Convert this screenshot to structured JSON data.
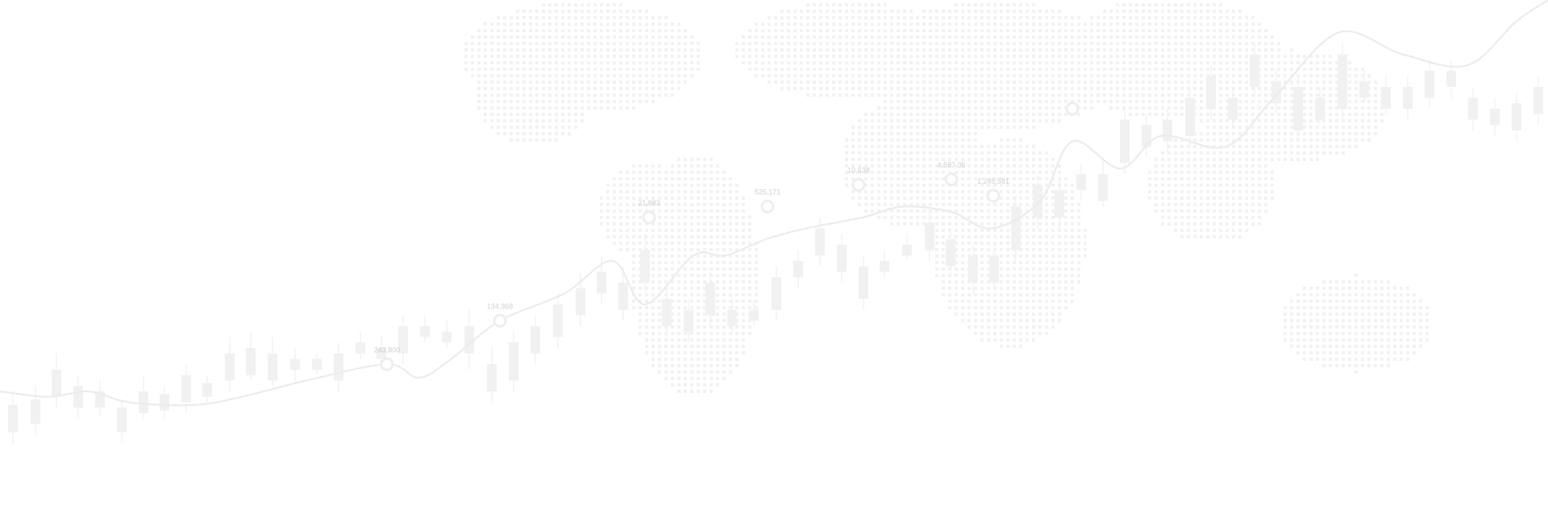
{
  "colors": {
    "background": "#ffffff",
    "map_dots": "#f2f2f2",
    "candles": "#f1f1f1",
    "line": "#ececec",
    "markers": "#eeeeee",
    "labels": "#d0d0d0"
  },
  "chart_data": {
    "type": "line",
    "title": "",
    "xlabel": "",
    "ylabel": "",
    "grid": false,
    "legend": "none",
    "overlay": "candlestick",
    "line_series": {
      "x": [
        0,
        60,
        110,
        160,
        240,
        300,
        380,
        480,
        520,
        560,
        620,
        700,
        760,
        800,
        860,
        900,
        950,
        1000,
        1070,
        1120,
        1180,
        1230,
        1290,
        1330,
        1390,
        1440,
        1520,
        1580,
        1660,
        1740,
        1820,
        1880,
        1920
      ],
      "y": [
        8,
        7,
        8,
        6,
        5.5,
        7,
        10,
        13,
        10.5,
        14,
        21,
        26,
        32,
        24,
        33,
        33,
        36,
        38,
        40,
        42,
        41,
        38,
        43,
        54,
        49,
        55,
        53,
        62,
        74,
        70,
        68,
        76,
        80
      ]
    },
    "markers": [
      {
        "x": 480,
        "y": 13,
        "label": "243,800"
      },
      {
        "x": 620,
        "y": 21,
        "label": "134,368"
      },
      {
        "x": 805,
        "y": 40,
        "label": "21,883"
      },
      {
        "x": 952,
        "y": 42,
        "label": "525,171"
      },
      {
        "x": 1065,
        "y": 46,
        "label": "10,638"
      },
      {
        "x": 1180,
        "y": 47,
        "label": "4,587.35"
      },
      {
        "x": 1232,
        "y": 44,
        "label": "1,245,581"
      },
      {
        "x": 1330,
        "y": 60,
        "label": ""
      }
    ],
    "candles": [
      {
        "x": 16,
        "open": 0.5,
        "close": 5.5,
        "high": 8,
        "low": -2
      },
      {
        "x": 44,
        "open": 2,
        "close": 6.5,
        "high": 9,
        "low": 0
      },
      {
        "x": 70,
        "open": 7,
        "close": 12,
        "high": 15,
        "low": 5
      },
      {
        "x": 97,
        "open": 5,
        "close": 9,
        "high": 11,
        "low": 3
      },
      {
        "x": 124,
        "open": 5,
        "close": 8,
        "high": 10,
        "low": 3.5
      },
      {
        "x": 151,
        "open": 0.5,
        "close": 5,
        "high": 6.5,
        "low": -1.5
      },
      {
        "x": 178,
        "open": 4,
        "close": 8,
        "high": 11,
        "low": 3
      },
      {
        "x": 204,
        "open": 4.5,
        "close": 7.5,
        "high": 9,
        "low": 3
      },
      {
        "x": 231,
        "open": 6,
        "close": 11,
        "high": 13,
        "low": 4
      },
      {
        "x": 257,
        "open": 7,
        "close": 9.5,
        "high": 11,
        "low": 6
      },
      {
        "x": 285,
        "open": 10,
        "close": 15,
        "high": 18,
        "low": 8
      },
      {
        "x": 311,
        "open": 11,
        "close": 16,
        "high": 19,
        "low": 10
      },
      {
        "x": 338,
        "open": 10,
        "close": 15,
        "high": 18,
        "low": 9
      },
      {
        "x": 366,
        "open": 12,
        "close": 14,
        "high": 16,
        "low": 10
      },
      {
        "x": 393,
        "open": 12,
        "close": 14,
        "high": 15,
        "low": 11
      },
      {
        "x": 420,
        "open": 10,
        "close": 15,
        "high": 17,
        "low": 8
      },
      {
        "x": 447,
        "open": 15,
        "close": 17,
        "high": 19,
        "low": 14
      },
      {
        "x": 473,
        "open": 14,
        "close": 16,
        "high": 18,
        "low": 12
      },
      {
        "x": 500,
        "open": 15,
        "close": 20,
        "high": 22,
        "low": 13
      },
      {
        "x": 527,
        "open": 18,
        "close": 20,
        "high": 22,
        "low": 17
      },
      {
        "x": 554,
        "open": 17,
        "close": 19,
        "high": 21,
        "low": 16
      },
      {
        "x": 582,
        "open": 15,
        "close": 20,
        "high": 23,
        "low": 12
      },
      {
        "x": 610,
        "open": 8,
        "close": 13,
        "high": 16,
        "low": 6
      },
      {
        "x": 637,
        "open": 10,
        "close": 17,
        "high": 19,
        "low": 8
      },
      {
        "x": 664,
        "open": 15,
        "close": 20,
        "high": 22,
        "low": 13
      },
      {
        "x": 692,
        "open": 18,
        "close": 24,
        "high": 26,
        "low": 16
      },
      {
        "x": 720,
        "open": 22,
        "close": 27,
        "high": 30,
        "low": 20
      },
      {
        "x": 746,
        "open": 26,
        "close": 30,
        "high": 33,
        "low": 24
      },
      {
        "x": 773,
        "open": 23,
        "close": 28,
        "high": 31,
        "low": 21
      },
      {
        "x": 800,
        "open": 28,
        "close": 34,
        "high": 37,
        "low": 26
      },
      {
        "x": 827,
        "open": 20,
        "close": 25,
        "high": 28,
        "low": 18
      },
      {
        "x": 854,
        "open": 19,
        "close": 23,
        "high": 25,
        "low": 17
      },
      {
        "x": 881,
        "open": 22,
        "close": 28,
        "high": 30,
        "low": 20
      },
      {
        "x": 908,
        "open": 20,
        "close": 23,
        "high": 25,
        "low": 19
      },
      {
        "x": 935,
        "open": 21,
        "close": 23,
        "high": 25,
        "low": 20
      },
      {
        "x": 963,
        "open": 23,
        "close": 29,
        "high": 31,
        "low": 21
      },
      {
        "x": 990,
        "open": 29,
        "close": 32,
        "high": 34,
        "low": 27
      },
      {
        "x": 1017,
        "open": 33,
        "close": 38,
        "high": 40,
        "low": 31
      },
      {
        "x": 1044,
        "open": 30,
        "close": 35,
        "high": 37,
        "low": 28
      },
      {
        "x": 1071,
        "open": 25,
        "close": 31,
        "high": 33,
        "low": 23
      },
      {
        "x": 1097,
        "open": 30,
        "close": 32,
        "high": 34,
        "low": 29
      },
      {
        "x": 1125,
        "open": 33,
        "close": 35,
        "high": 37,
        "low": 32
      },
      {
        "x": 1153,
        "open": 34,
        "close": 39,
        "high": 41,
        "low": 32
      },
      {
        "x": 1179,
        "open": 31,
        "close": 36,
        "high": 38,
        "low": 29
      },
      {
        "x": 1207,
        "open": 28,
        "close": 33,
        "high": 35,
        "low": 26
      },
      {
        "x": 1233,
        "open": 28,
        "close": 33,
        "high": 35,
        "low": 27
      },
      {
        "x": 1260,
        "open": 34,
        "close": 42,
        "high": 44,
        "low": 32
      },
      {
        "x": 1287,
        "open": 40,
        "close": 46,
        "high": 48,
        "low": 38
      },
      {
        "x": 1314,
        "open": 40,
        "close": 45,
        "high": 47,
        "low": 38
      },
      {
        "x": 1341,
        "open": 45,
        "close": 48,
        "high": 50,
        "low": 43
      },
      {
        "x": 1368,
        "open": 43,
        "close": 48,
        "high": 51,
        "low": 42
      },
      {
        "x": 1395,
        "open": 50,
        "close": 58,
        "high": 60,
        "low": 48
      },
      {
        "x": 1422,
        "open": 53,
        "close": 57,
        "high": 59,
        "low": 51
      },
      {
        "x": 1448,
        "open": 54,
        "close": 58,
        "high": 60,
        "low": 52
      },
      {
        "x": 1476,
        "open": 55,
        "close": 62,
        "high": 64,
        "low": 53
      },
      {
        "x": 1502,
        "open": 60,
        "close": 66,
        "high": 68,
        "low": 58
      },
      {
        "x": 1529,
        "open": 58,
        "close": 62,
        "high": 64,
        "low": 57
      },
      {
        "x": 1556,
        "open": 64,
        "close": 70,
        "high": 72,
        "low": 62
      },
      {
        "x": 1583,
        "open": 61,
        "close": 65,
        "high": 67,
        "low": 59
      },
      {
        "x": 1610,
        "open": 56,
        "close": 64,
        "high": 66,
        "low": 54
      },
      {
        "x": 1637,
        "open": 58,
        "close": 62,
        "high": 64,
        "low": 57
      },
      {
        "x": 1665,
        "open": 60,
        "close": 70,
        "high": 72,
        "low": 58
      },
      {
        "x": 1692,
        "open": 62,
        "close": 65,
        "high": 67,
        "low": 61
      },
      {
        "x": 1719,
        "open": 60,
        "close": 64,
        "high": 66,
        "low": 59
      },
      {
        "x": 1746,
        "open": 60,
        "close": 64,
        "high": 66,
        "low": 58
      },
      {
        "x": 1773,
        "open": 62,
        "close": 67,
        "high": 69,
        "low": 60
      },
      {
        "x": 1800,
        "open": 64,
        "close": 67,
        "high": 69,
        "low": 62
      },
      {
        "x": 1827,
        "open": 58,
        "close": 62,
        "high": 64,
        "low": 56
      },
      {
        "x": 1854,
        "open": 57,
        "close": 60,
        "high": 62,
        "low": 55
      },
      {
        "x": 1881,
        "open": 56,
        "close": 61,
        "high": 63,
        "low": 54
      },
      {
        "x": 1908,
        "open": 59,
        "close": 64,
        "high": 66,
        "low": 57
      }
    ]
  }
}
